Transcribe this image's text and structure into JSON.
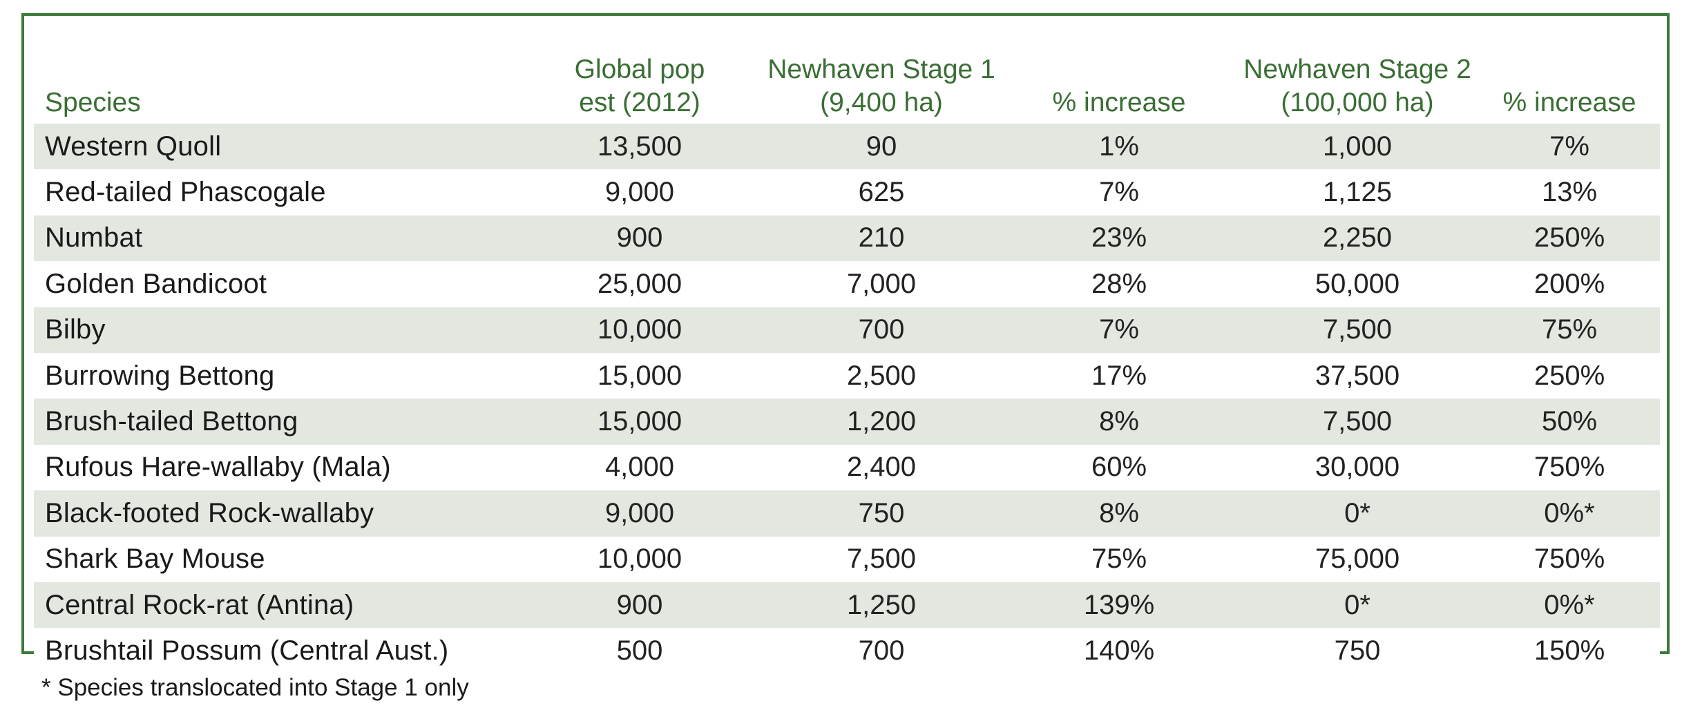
{
  "headers": {
    "species": "Species",
    "global_line1": "Global pop",
    "global_line2": "est (2012)",
    "stage1_line1": "Newhaven Stage 1",
    "stage1_line2": "(9,400 ha)",
    "pct1": "% increase",
    "stage2_line1": "Newhaven Stage 2",
    "stage2_line2": "(100,000 ha)",
    "pct2": "% increase"
  },
  "rows": [
    {
      "species": "Western Quoll",
      "global": "13,500",
      "stage1": "90",
      "pct1": "1%",
      "stage2": "1,000",
      "pct2": "7%"
    },
    {
      "species": "Red-tailed Phascogale",
      "global": "9,000",
      "stage1": "625",
      "pct1": "7%",
      "stage2": "1,125",
      "pct2": "13%"
    },
    {
      "species": "Numbat",
      "global": "900",
      "stage1": "210",
      "pct1": "23%",
      "stage2": "2,250",
      "pct2": "250%"
    },
    {
      "species": "Golden Bandicoot",
      "global": "25,000",
      "stage1": "7,000",
      "pct1": "28%",
      "stage2": "50,000",
      "pct2": "200%"
    },
    {
      "species": "Bilby",
      "global": "10,000",
      "stage1": "700",
      "pct1": "7%",
      "stage2": "7,500",
      "pct2": "75%"
    },
    {
      "species": "Burrowing Bettong",
      "global": "15,000",
      "stage1": "2,500",
      "pct1": "17%",
      "stage2": "37,500",
      "pct2": "250%"
    },
    {
      "species": "Brush-tailed Bettong",
      "global": "15,000",
      "stage1": "1,200",
      "pct1": "8%",
      "stage2": "7,500",
      "pct2": "50%"
    },
    {
      "species": "Rufous Hare-wallaby (Mala)",
      "global": "4,000",
      "stage1": "2,400",
      "pct1": "60%",
      "stage2": "30,000",
      "pct2": "750%"
    },
    {
      "species": "Black-footed Rock-wallaby",
      "global": "9,000",
      "stage1": "750",
      "pct1": "8%",
      "stage2": "0*",
      "pct2": "0%*"
    },
    {
      "species": "Shark Bay Mouse",
      "global": "10,000",
      "stage1": "7,500",
      "pct1": "75%",
      "stage2": "75,000",
      "pct2": "750%"
    },
    {
      "species": "Central Rock-rat (Antina)",
      "global": "900",
      "stage1": "1,250",
      "pct1": "139%",
      "stage2": "0*",
      "pct2": "0%*"
    },
    {
      "species": "Brushtail Possum (Central Aust.)",
      "global": "500",
      "stage1": "700",
      "pct1": "140%",
      "stage2": "750",
      "pct2": "150%"
    }
  ],
  "footnote": "* Species translocated into Stage 1 only",
  "colors": {
    "header_text": "#3a6e34",
    "border": "#3d7a3d",
    "row_stripe": "#e2e7e0"
  }
}
